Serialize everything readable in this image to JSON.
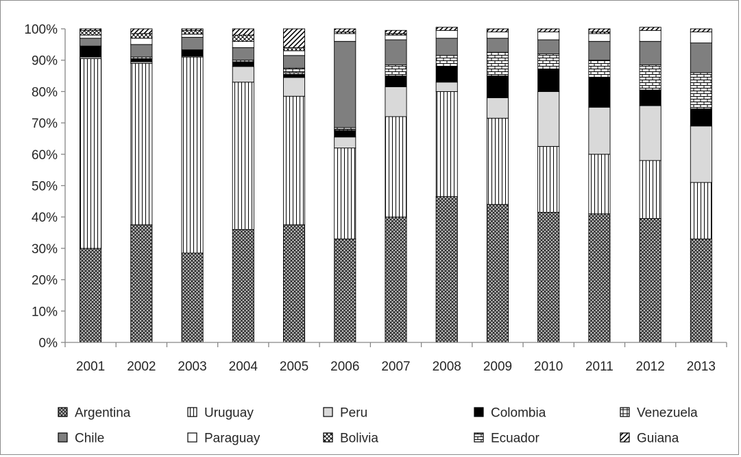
{
  "chart_data": {
    "type": "bar",
    "stacked": true,
    "title": "",
    "xlabel": "",
    "ylabel": "",
    "ylim": [
      0,
      100
    ],
    "yticks": [
      "0%",
      "10%",
      "20%",
      "30%",
      "40%",
      "50%",
      "60%",
      "70%",
      "80%",
      "90%",
      "100%"
    ],
    "grid": false,
    "legend_position": "bottom",
    "categories": [
      "2001",
      "2002",
      "2003",
      "2004",
      "2005",
      "2006",
      "2007",
      "2008",
      "2009",
      "2010",
      "2011",
      "2012",
      "2013"
    ],
    "series": [
      {
        "name": "Argentina",
        "pattern": "dense-crosshatch",
        "color": "#7a7a7a",
        "values": [
          30,
          37.5,
          28.5,
          36,
          37.5,
          33,
          40,
          46.5,
          44,
          41.5,
          41,
          39.5,
          33
        ]
      },
      {
        "name": "Uruguay",
        "pattern": "vertical-lines",
        "color": "#ffffff",
        "values": [
          60.5,
          51.5,
          62.5,
          47,
          41,
          29,
          32,
          33.5,
          27.5,
          21,
          19,
          18.5,
          18
        ]
      },
      {
        "name": "Peru",
        "pattern": "solid",
        "color": "#d9d9d9",
        "values": [
          0.5,
          0.5,
          0.3,
          5,
          6,
          3.5,
          9.5,
          3,
          6.5,
          17.5,
          15,
          17.5,
          18
        ]
      },
      {
        "name": "Colombia",
        "pattern": "solid",
        "color": "#000000",
        "values": [
          3.5,
          1,
          2,
          1.5,
          1,
          2,
          3.5,
          5,
          7,
          7,
          9.5,
          5,
          5.5
        ]
      },
      {
        "name": "Venezuela",
        "pattern": "grid",
        "color": "#ffffff",
        "values": [
          0,
          0.5,
          0,
          0.5,
          0.5,
          0.5,
          0,
          0,
          0,
          0,
          0,
          0,
          0
        ]
      },
      {
        "name": "Ecuador",
        "pattern": "brick",
        "color": "#ffffff",
        "values": [
          0,
          0,
          0,
          0,
          1.5,
          0.5,
          3.5,
          3.5,
          7.5,
          5,
          5.5,
          8,
          11.5
        ]
      },
      {
        "name": "Chile",
        "pattern": "solid",
        "color": "#7f7f7f",
        "values": [
          2.5,
          4,
          4,
          4,
          4,
          27.5,
          8,
          5.5,
          4.5,
          4.5,
          6,
          7.5,
          9.5
        ]
      },
      {
        "name": "Paraguay",
        "pattern": "solid",
        "color": "#ffffff",
        "values": [
          1,
          2,
          1,
          2,
          1.5,
          2.5,
          1.5,
          2.5,
          2,
          2.5,
          2.5,
          3.5,
          3.5
        ]
      },
      {
        "name": "Bolivia",
        "pattern": "diamond-hatch",
        "color": "#ffffff",
        "values": [
          1.5,
          1.5,
          1.2,
          2,
          1,
          0.5,
          0.5,
          0,
          0,
          0,
          0.5,
          0,
          0
        ]
      },
      {
        "name": "Guiana",
        "pattern": "diagonal-lines",
        "color": "#ffffff",
        "values": [
          0.5,
          1.5,
          0.5,
          2,
          6,
          1,
          1,
          1,
          1,
          1,
          1,
          1,
          1
        ]
      }
    ],
    "legend_order": [
      "Argentina",
      "Uruguay",
      "Peru",
      "Colombia",
      "Venezuela",
      "Chile",
      "Paraguay",
      "Bolivia",
      "Ecuador",
      "Guiana"
    ]
  }
}
